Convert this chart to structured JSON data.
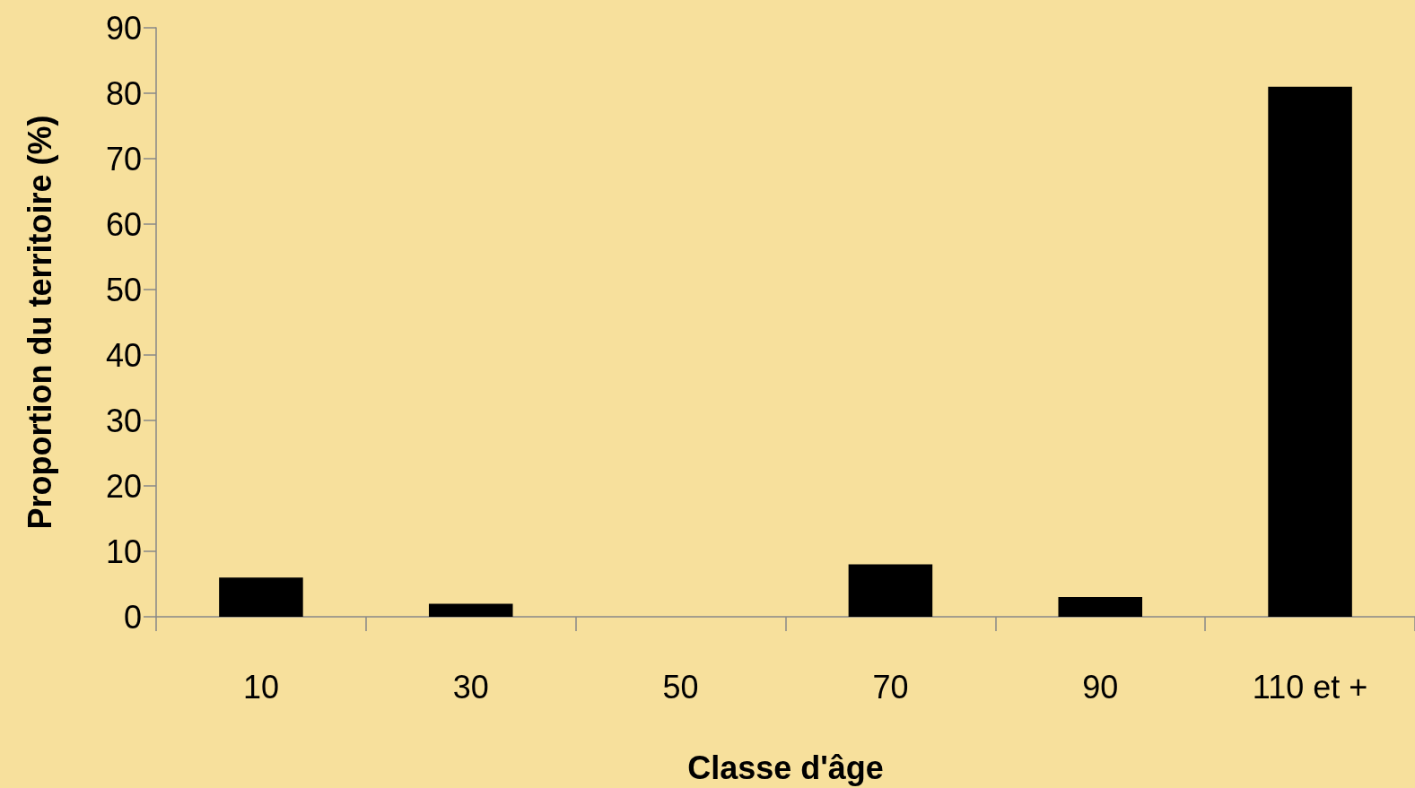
{
  "chart_data": {
    "type": "bar",
    "xlabel": "Classe d'âge",
    "ylabel": "Proportion du territoire (%)",
    "categories": [
      "10",
      "30",
      "50",
      "70",
      "90",
      "110 et +"
    ],
    "values": [
      6,
      2,
      0,
      8,
      3,
      81
    ],
    "color": "#000000",
    "ylim": [
      0,
      90
    ],
    "yticks": [
      0,
      10,
      20,
      30,
      40,
      50,
      60,
      70,
      80,
      90
    ],
    "grid": false
  }
}
